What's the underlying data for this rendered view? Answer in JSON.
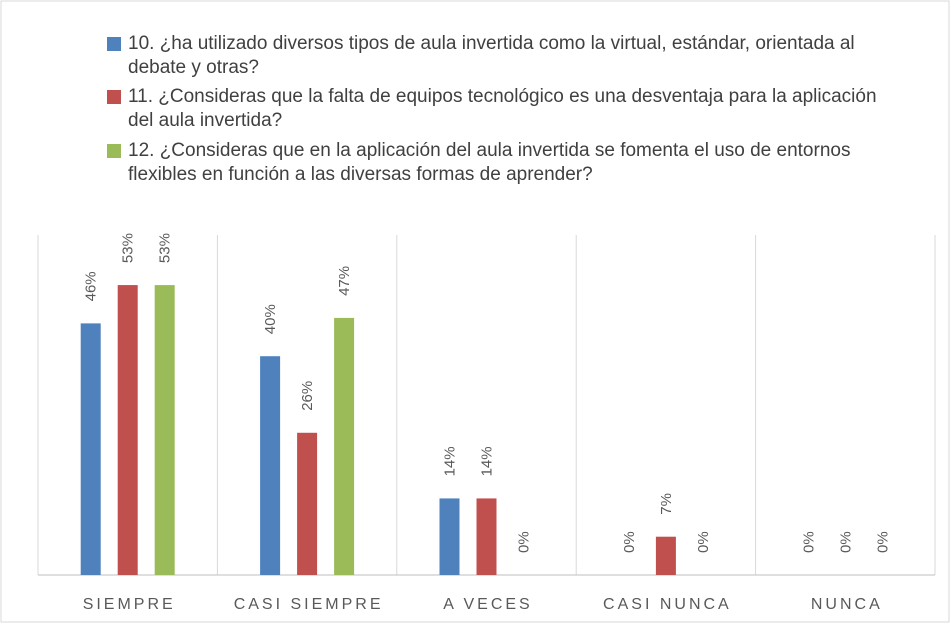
{
  "chart_data": {
    "type": "bar",
    "categories": [
      "SIEMPRE",
      "CASI SIEMPRE",
      "A VECES",
      "CASI NUNCA",
      "NUNCA"
    ],
    "series": [
      {
        "name": "10. ¿ha utilizado diversos tipos de aula invertida como la virtual, estándar, orientada al debate y otras?",
        "color": "#4f81bd",
        "values": [
          46,
          40,
          14,
          0,
          0
        ],
        "value_labels": [
          "46%",
          "40%",
          "14%",
          "0%",
          "0%"
        ]
      },
      {
        "name": "11. ¿Consideras que la falta de equipos tecnológico es una desventaja para la aplicación del aula invertida?",
        "color": "#c0504d",
        "values": [
          53,
          26,
          14,
          7,
          0
        ],
        "value_labels": [
          "53%",
          "26%",
          "14%",
          "7%",
          "0%"
        ]
      },
      {
        "name": "12. ¿Consideras que en la aplicación del aula invertida se fomenta el uso de entornos flexibles en función a las diversas formas de aprender?",
        "color": "#9bbb59",
        "values": [
          53,
          47,
          0,
          0,
          0
        ],
        "value_labels": [
          "53%",
          "47%",
          "0%",
          "0%",
          "0%"
        ]
      }
    ],
    "legend": "top"
  }
}
